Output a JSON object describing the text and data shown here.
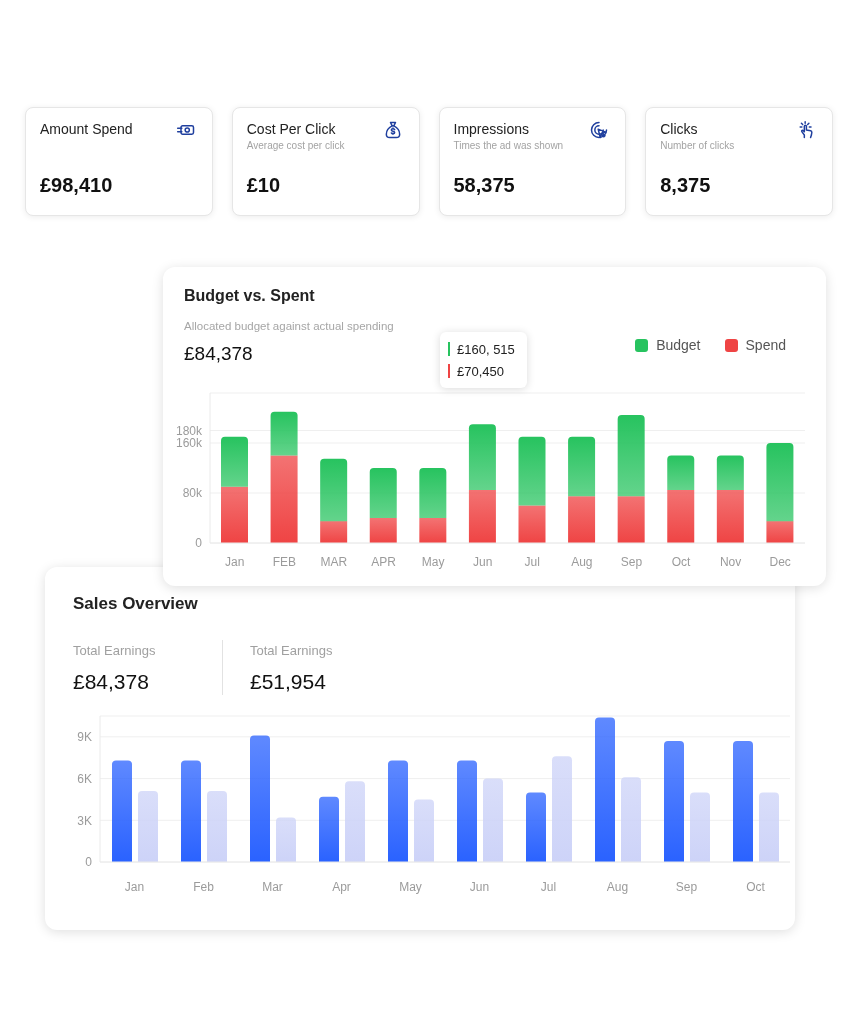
{
  "chart_data": [
    {
      "type": "other",
      "categories": [
        "Amount Spend",
        "Cost Per Click",
        "Impressions",
        "Clicks"
      ],
      "value_labels": [
        "£98,410",
        "£10",
        "58,375",
        "8,375"
      ],
      "annotations": [
        {
          "text": "Average cost per click",
          "x": "Cost Per Click"
        },
        {
          "text": "Times the ad was shown",
          "x": "Impressions"
        },
        {
          "text": "Number of clicks",
          "x": "Clicks"
        }
      ]
    },
    {
      "type": "bar",
      "title": "Budget vs. Spent",
      "subtitle": "Allocated budget against actual spending",
      "annotations": [
        "£84,378",
        "£160, 515",
        "£70,450"
      ],
      "categories": [
        "Jan",
        "FEB",
        "MAR",
        "APR",
        "May",
        "Jun",
        "Jul",
        "Aug",
        "Sep",
        "Oct",
        "Nov",
        "Dec"
      ],
      "stacked": true,
      "series": [
        {
          "name": "Spend",
          "color": "#ef4444",
          "values": [
            90000,
            140000,
            35000,
            40000,
            40000,
            85000,
            60000,
            75000,
            75000,
            85000,
            85000,
            35000
          ]
        },
        {
          "name": "Budget",
          "color": "#27c35f",
          "values": [
            80000,
            70000,
            100000,
            80000,
            80000,
            105000,
            110000,
            95000,
            130000,
            55000,
            55000,
            125000
          ]
        }
      ],
      "ylim": [
        0,
        240000
      ],
      "yticks": [
        0,
        {
          "value": 80000,
          "label": "80k"
        },
        {
          "value": 160000,
          "label": "160k"
        },
        {
          "value": 180000,
          "label": "180k"
        }
      ],
      "grid": "y",
      "legend": "top right"
    },
    {
      "type": "bar",
      "title": "Sales Overview",
      "annotations": [
        "Total Earnings",
        "£84,378",
        "Total Earnings",
        "£51,954"
      ],
      "categories": [
        "Jan",
        "Feb",
        "Mar",
        "Apr",
        "May",
        "Jun",
        "Jul",
        "Aug",
        "Sep",
        "Oct"
      ],
      "series": [
        {
          "color": "#2a62ff",
          "values": [
            7300,
            7300,
            9100,
            4700,
            7300,
            7300,
            5000,
            10400,
            8700,
            8700
          ]
        },
        {
          "color": "#cdd3f8",
          "values": [
            5100,
            5100,
            3200,
            5800,
            4500,
            6000,
            7600,
            6100,
            5000,
            5000
          ]
        }
      ],
      "ylim": [
        0,
        10500
      ],
      "yticks": [
        0,
        {
          "value": 3000,
          "label": "3K"
        },
        {
          "value": 6000,
          "label": "6K"
        },
        {
          "value": 9000,
          "label": "9K"
        }
      ],
      "grid": "y"
    }
  ]
}
